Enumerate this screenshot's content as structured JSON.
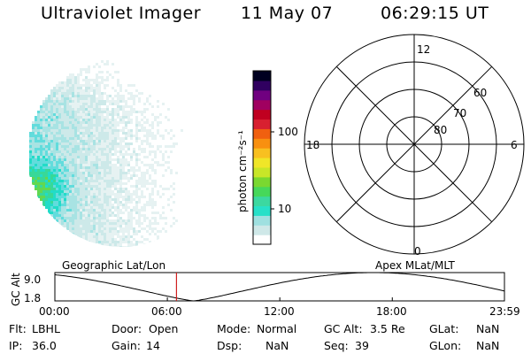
{
  "header": {
    "instrument": "Ultraviolet Imager",
    "date": "11 May 07",
    "time": "06:29:15 UT"
  },
  "colorbar": {
    "label": "photon cm⁻²s⁻¹",
    "ticks": [
      "100",
      "10"
    ],
    "colors": [
      "#ffffff",
      "#cfe8e8",
      "#9fe0e0",
      "#27e0c8",
      "#3cd8a0",
      "#46d85a",
      "#7ad830",
      "#c8e628",
      "#f0e628",
      "#f8c020",
      "#f89010",
      "#f06010",
      "#d82030",
      "#c00020",
      "#a00060",
      "#700080",
      "#300060",
      "#000020"
    ]
  },
  "polar_plot": {
    "latitude_labels": [
      "80",
      "70",
      "60"
    ],
    "mlt_labels": {
      "top": "12",
      "bottom": "0",
      "left": "18",
      "right": "6"
    }
  },
  "timeline": {
    "left_label": "Geographic Lat/Lon",
    "right_label": "Apex MLat/MLT",
    "y_axis_label": "GC Alt",
    "y_max": "9.0",
    "y_min": "1.8",
    "time_ticks": [
      "00:00",
      "06:00",
      "12:00",
      "18:00",
      "23:59"
    ],
    "current_time_hours": 6.4875,
    "marker_color": "#d02020"
  },
  "info": {
    "filter_label": "Flt:",
    "filter_value": "LBHL",
    "ip_label": "IP:",
    "ip_value": "36.0",
    "door_label": "Door:",
    "door_value": "Open",
    "gain_label": "Gain:",
    "gain_value": "14",
    "mode_label": "Mode:",
    "mode_value": "Normal",
    "dsp_label": "Dsp:",
    "dsp_value": "NaN",
    "gcalt_label": "GC Alt:",
    "gcalt_value": "3.5 Re",
    "seq_label": "Seq:",
    "seq_value": "39",
    "glat_label": "GLat:",
    "glat_value": "NaN",
    "glon_label": "GLon:",
    "glon_value": "NaN"
  }
}
